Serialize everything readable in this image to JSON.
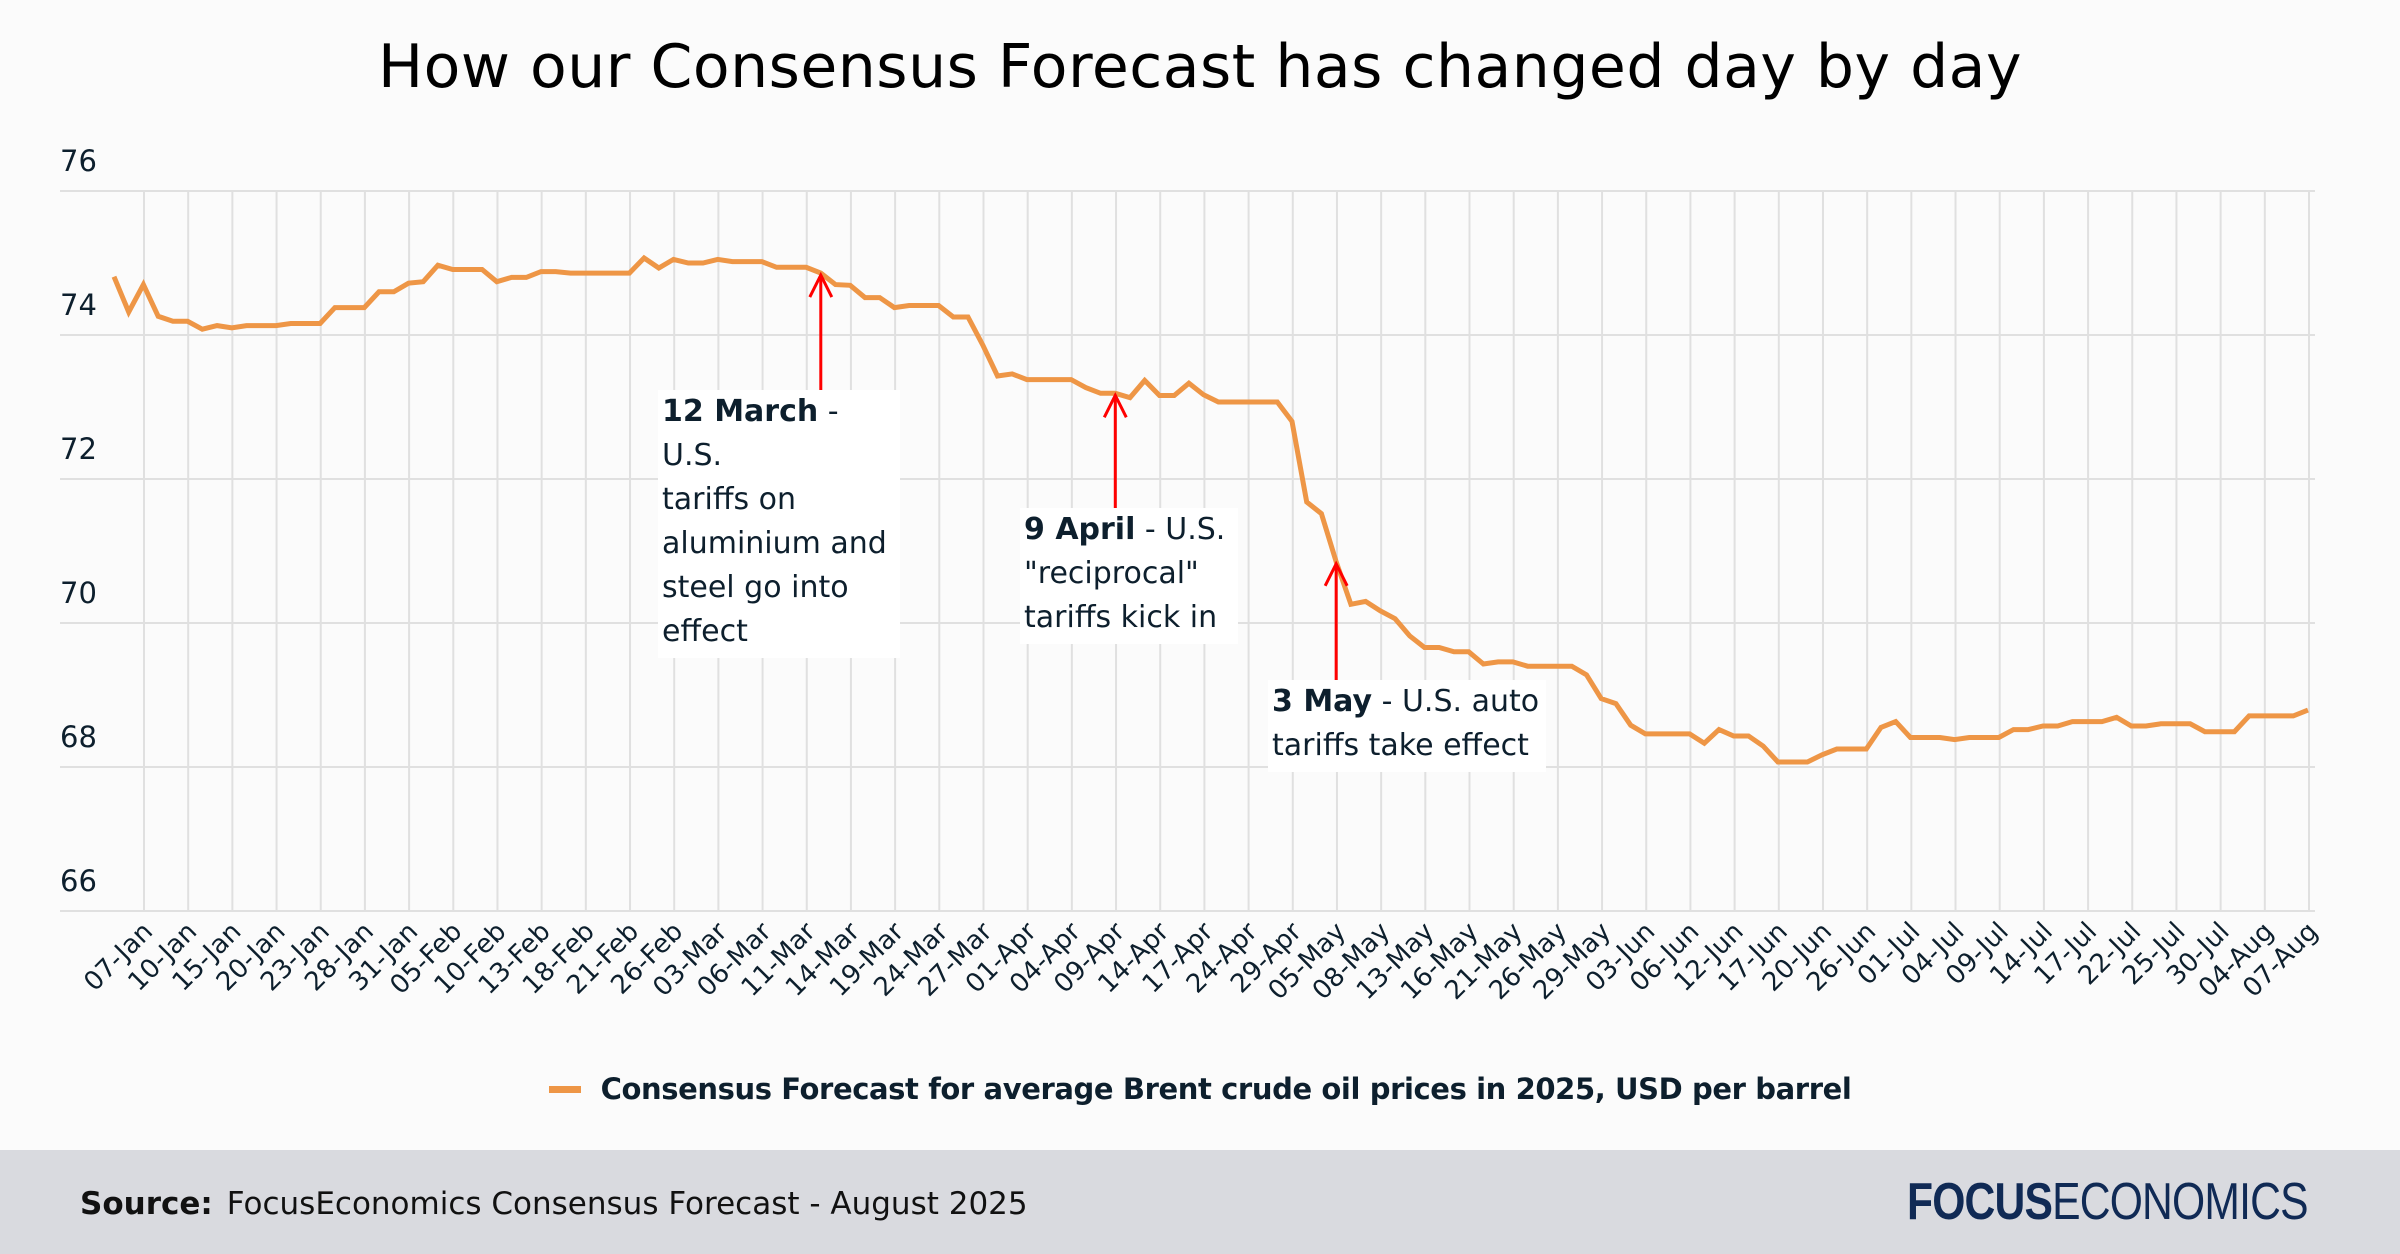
{
  "title": "How our Consensus Forecast has changed day by day",
  "legend": {
    "label": "Consensus Forecast for average Brent crude oil prices in 2025, USD per barrel",
    "color": "#ee9646"
  },
  "footer": {
    "source_label": "Source:",
    "source_text": "FocusEconomics Consensus Forecast - August 2025",
    "logo_bold": "FOCUS",
    "logo_light": "ECONOMICS"
  },
  "annotations": [
    {
      "bold": "12 March",
      "text": " - U.S. tariffs on aluminium and steel go into effect",
      "lines": [
        "tariffs on",
        "aluminium and",
        "steel go into effect"
      ],
      "first_rest": " - U.S.",
      "value": 74.86,
      "color": "#ff0000"
    },
    {
      "bold": "9 April",
      "text": " - U.S. \"reciprocal\" tariffs kick in",
      "lines": [
        "\"reciprocal\"",
        "tariffs kick in"
      ],
      "first_rest": " - U.S.",
      "value": 73.19,
      "color": "#ff0000"
    },
    {
      "bold": "3 May",
      "text": " - U.S. auto tariffs take effect",
      "lines": [
        "tariffs take effect"
      ],
      "first_rest": " - U.S. auto",
      "value": 70.85,
      "color": "#ff0000"
    }
  ],
  "chart_data": {
    "type": "line",
    "title": "How our Consensus Forecast has changed day by day",
    "xlabel": "",
    "ylabel": "",
    "ylim": [
      66,
      76
    ],
    "yticks": [
      66,
      68,
      70,
      72,
      74,
      76
    ],
    "grid": true,
    "legend_position": "bottom-center",
    "x_tick_labels": [
      "07-Jan",
      "10-Jan",
      "15-Jan",
      "20-Jan",
      "23-Jan",
      "28-Jan",
      "31-Jan",
      "05-Feb",
      "10-Feb",
      "13-Feb",
      "18-Feb",
      "21-Feb",
      "26-Feb",
      "03-Mar",
      "06-Mar",
      "11-Mar",
      "14-Mar",
      "19-Mar",
      "24-Mar",
      "27-Mar",
      "01-Apr",
      "04-Apr",
      "09-Apr",
      "14-Apr",
      "17-Apr",
      "24-Apr",
      "29-Apr",
      "05-May",
      "08-May",
      "13-May",
      "16-May",
      "21-May",
      "26-May",
      "29-May",
      "03-Jun",
      "06-Jun",
      "12-Jun",
      "17-Jun",
      "20-Jun",
      "26-Jun",
      "01-Jul",
      "04-Jul",
      "09-Jul",
      "14-Jul",
      "17-Jul",
      "22-Jul",
      "25-Jul",
      "30-Jul",
      "04-Aug",
      "07-Aug"
    ],
    "series": [
      {
        "name": "Consensus Forecast for average Brent crude oil prices in 2025, USD per barrel",
        "color": "#ee9646",
        "values": [
          74.81,
          74.32,
          74.7,
          74.26,
          74.19,
          74.19,
          74.08,
          74.13,
          74.1,
          74.13,
          74.13,
          74.13,
          74.16,
          74.16,
          74.16,
          74.38,
          74.38,
          74.38,
          74.6,
          74.6,
          74.72,
          74.74,
          74.97,
          74.91,
          74.91,
          74.91,
          74.74,
          74.8,
          74.8,
          74.88,
          74.88,
          74.86,
          74.86,
          74.86,
          74.86,
          74.86,
          75.07,
          74.93,
          75.05,
          75.0,
          75.0,
          75.05,
          75.02,
          75.02,
          75.02,
          74.94,
          74.94,
          74.94,
          74.86,
          74.7,
          74.69,
          74.52,
          74.52,
          74.38,
          74.41,
          74.41,
          74.41,
          74.25,
          74.25,
          73.86,
          73.43,
          73.46,
          73.38,
          73.38,
          73.38,
          73.38,
          73.27,
          73.19,
          73.19,
          73.13,
          73.37,
          73.16,
          73.16,
          73.33,
          73.17,
          73.07,
          73.07,
          73.07,
          73.07,
          73.07,
          72.8,
          71.68,
          71.52,
          70.85,
          70.26,
          70.3,
          70.17,
          70.06,
          69.82,
          69.66,
          69.66,
          69.6,
          69.6,
          69.43,
          69.46,
          69.46,
          69.4,
          69.4,
          69.4,
          69.4,
          69.28,
          68.95,
          68.88,
          68.58,
          68.46,
          68.46,
          68.46,
          68.46,
          68.33,
          68.52,
          68.43,
          68.43,
          68.29,
          68.07,
          68.07,
          68.07,
          68.17,
          68.25,
          68.25,
          68.25,
          68.55,
          68.63,
          68.41,
          68.41,
          68.41,
          68.38,
          68.41,
          68.41,
          68.41,
          68.52,
          68.52,
          68.57,
          68.57,
          68.63,
          68.63,
          68.63,
          68.69,
          68.57,
          68.57,
          68.6,
          68.6,
          68.6,
          68.49,
          68.49,
          68.49,
          68.71,
          68.71,
          68.71,
          68.71,
          68.79
        ]
      }
    ],
    "annotation_point_indices": [
      48,
      68,
      83
    ]
  }
}
